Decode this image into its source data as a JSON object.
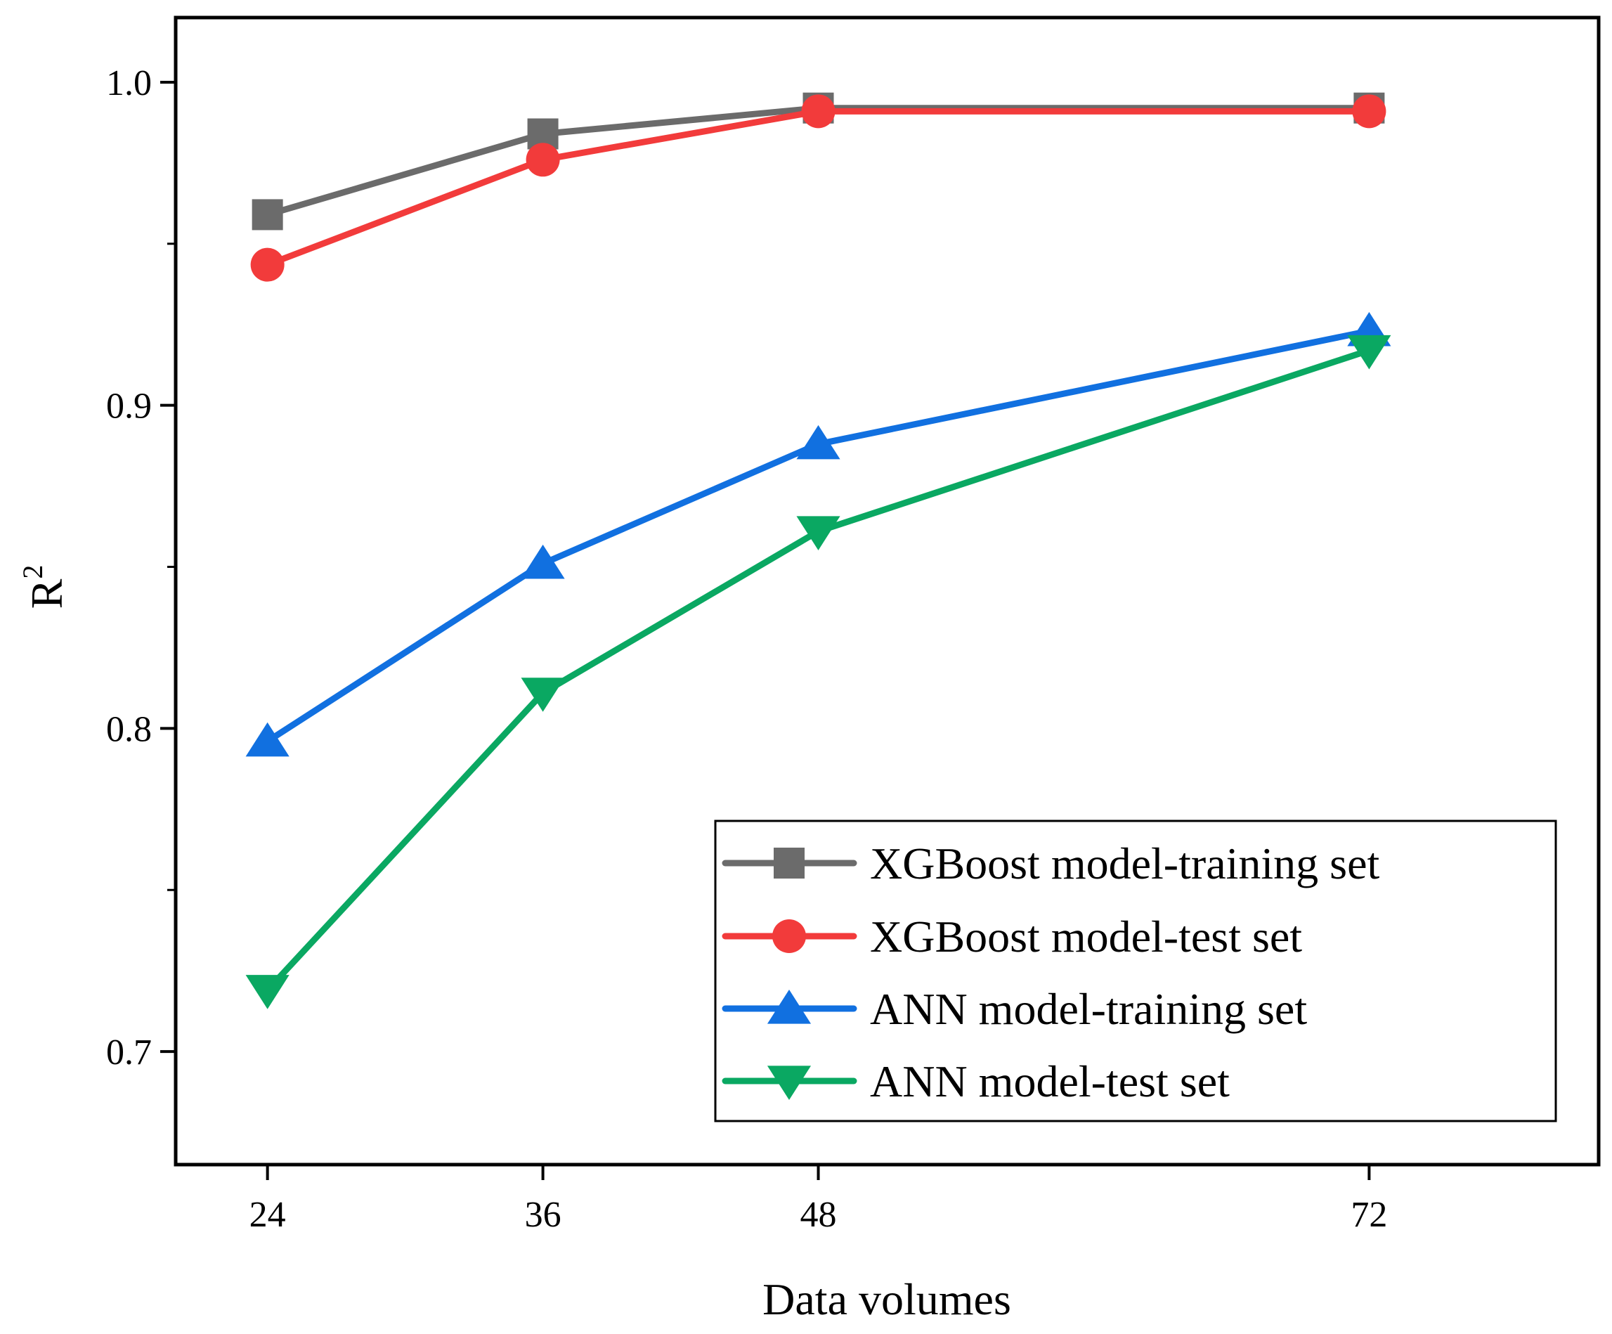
{
  "chart_data": {
    "type": "line",
    "title": "",
    "xlabel": "Data volumes",
    "ylabel": "R",
    "ylabel_superscript": "2",
    "categories": [
      "24",
      "36",
      "48",
      "72"
    ],
    "x": [
      24,
      36,
      48,
      72
    ],
    "xlim": [
      20,
      82
    ],
    "ylim": [
      0.665,
      1.02
    ],
    "yticks": [
      0.7,
      0.8,
      0.9,
      1.0
    ],
    "ytick_labels": [
      "0.7",
      "0.8",
      "0.9",
      "1.0"
    ],
    "yminor_ticks": [
      0.75,
      0.85,
      0.95
    ],
    "grid": false,
    "legend_position": "bottom-right",
    "series": [
      {
        "name": "XGBoost model-training set",
        "values": [
          0.959,
          0.984,
          0.992,
          0.992
        ],
        "color": "#6b6b6b",
        "marker": "square"
      },
      {
        "name": "XGBoost model-test set",
        "values": [
          0.9435,
          0.976,
          0.991,
          0.991
        ],
        "color": "#f23b3b",
        "marker": "circle"
      },
      {
        "name": "ANN model-training set",
        "values": [
          0.796,
          0.851,
          0.888,
          0.923
        ],
        "color": "#1170e0",
        "marker": "triangle-up"
      },
      {
        "name": "ANN model-test set",
        "values": [
          0.719,
          0.811,
          0.861,
          0.917
        ],
        "color": "#0aa862",
        "marker": "triangle-down"
      }
    ]
  }
}
